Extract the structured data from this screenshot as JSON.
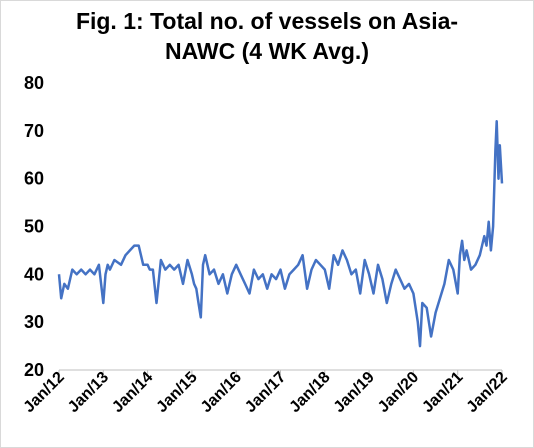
{
  "chart_data": {
    "type": "line",
    "title_line1": "Fig. 1: Total no. of vessels on Asia-",
    "title_line2": "NAWC (4 WK Avg.)",
    "xlabel": "",
    "ylabel": "",
    "ylim": [
      20,
      80
    ],
    "yticks": [
      "20",
      "30",
      "40",
      "50",
      "60",
      "70",
      "80"
    ],
    "xticks": [
      "Jan/12",
      "Jan/13",
      "Jan/14",
      "Jan/15",
      "Jan/16",
      "Jan/17",
      "Jan/18",
      "Jan/19",
      "Jan/20",
      "Jan/21",
      "Jan/22"
    ],
    "grid": false,
    "legend": "none",
    "line_color": "#4472c4",
    "series": [
      {
        "x": [
          2012.0,
          2012.05,
          2012.12,
          2012.2,
          2012.3,
          2012.4,
          2012.5,
          2012.6,
          2012.7,
          2012.8,
          2012.9,
          2013.0,
          2013.05,
          2013.1,
          2013.15,
          2013.25,
          2013.4,
          2013.5,
          2013.6,
          2013.7,
          2013.8,
          2013.9,
          2014.0,
          2014.05,
          2014.12,
          2014.2,
          2014.3,
          2014.4,
          2014.5,
          2014.6,
          2014.7,
          2014.8,
          2014.9,
          2015.0,
          2015.05,
          2015.1,
          2015.15,
          2015.2,
          2015.25,
          2015.3,
          2015.4,
          2015.5,
          2015.6,
          2015.7,
          2015.8,
          2015.9,
          2016.0,
          2016.1,
          2016.2,
          2016.3,
          2016.4,
          2016.5,
          2016.6,
          2016.7,
          2016.8,
          2016.9,
          2017.0,
          2017.1,
          2017.2,
          2017.3,
          2017.4,
          2017.5,
          2017.6,
          2017.7,
          2017.8,
          2017.9,
          2018.0,
          2018.1,
          2018.2,
          2018.3,
          2018.4,
          2018.5,
          2018.6,
          2018.7,
          2018.8,
          2018.9,
          2019.0,
          2019.1,
          2019.2,
          2019.3,
          2019.4,
          2019.5,
          2019.6,
          2019.7,
          2019.8,
          2019.9,
          2020.0,
          2020.05,
          2020.1,
          2020.15,
          2020.2,
          2020.3,
          2020.35,
          2020.4,
          2020.5,
          2020.6,
          2020.7,
          2020.8,
          2020.9,
          2021.0,
          2021.05,
          2021.1,
          2021.15,
          2021.2,
          2021.3,
          2021.4,
          2021.5,
          2021.6,
          2021.65,
          2021.7,
          2021.75,
          2021.8,
          2021.85,
          2021.88,
          2021.92,
          2021.95,
          2022.0
        ],
        "y": [
          40,
          35,
          38,
          37,
          41,
          40,
          41,
          40,
          41,
          40,
          42,
          34,
          40,
          42,
          41,
          43,
          42,
          44,
          45,
          46,
          46,
          42,
          42,
          41,
          41,
          34,
          43,
          41,
          42,
          41,
          42,
          38,
          43,
          40,
          38,
          37,
          34,
          31,
          42,
          44,
          40,
          41,
          38,
          40,
          36,
          40,
          42,
          40,
          38,
          36,
          41,
          39,
          40,
          37,
          40,
          39,
          41,
          37,
          40,
          41,
          42,
          44,
          37,
          41,
          43,
          42,
          41,
          37,
          44,
          42,
          45,
          43,
          40,
          41,
          36,
          43,
          40,
          36,
          42,
          39,
          34,
          38,
          41,
          39,
          37,
          38,
          36,
          33,
          30,
          25,
          34,
          33,
          30,
          27,
          32,
          35,
          38,
          43,
          41,
          36,
          44,
          47,
          43,
          45,
          41,
          42,
          44,
          48,
          46,
          51,
          45,
          50,
          66,
          72,
          60,
          67,
          59
        ]
      }
    ]
  }
}
